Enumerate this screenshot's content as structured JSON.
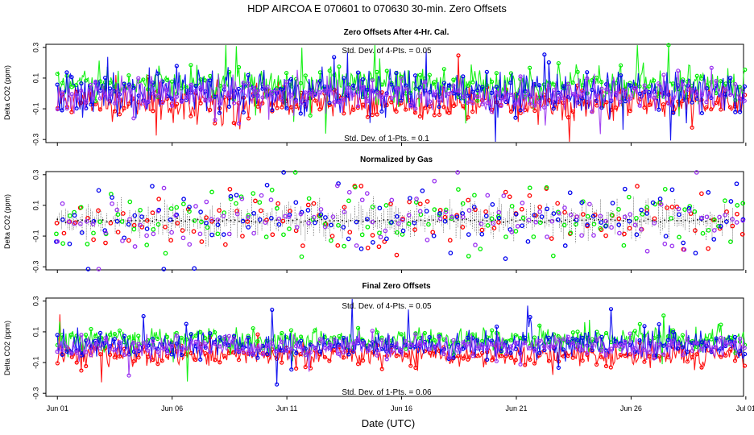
{
  "title": "HDP   AIRCOA E   070601 to 070630   30-min. Zero Offsets",
  "xlabel": "Date (UTC)",
  "colors": {
    "red": "#ff0000",
    "green": "#00ee00",
    "blue": "#0000ee",
    "purple": "#9a32f0",
    "black": "#000000"
  },
  "chart_data": [
    {
      "type": "scatter",
      "title": "Zero Offsets After 4-Hr. Cal.",
      "ylabel": "Delta CO2 (ppm)",
      "ylim": [
        -0.32,
        0.32
      ],
      "yticks": [
        0.3,
        0.1,
        -0.1,
        -0.3
      ],
      "ytick_labels": [
        "0.3",
        "0.1",
        "-0.1",
        "-0.3"
      ],
      "xlim": [
        0.5,
        30.9
      ],
      "xticks": [
        1,
        6,
        11,
        16,
        21,
        26,
        31
      ],
      "xtick_labels": [
        "Jun 01",
        "Jun 06",
        "Jun 11",
        "Jun 16",
        "Jun 21",
        "Jun 26",
        "Jul 01"
      ],
      "annotation_top": "Std. Dev. of 4-Pts. = 0.05",
      "annotation_bottom": "Std. Dev. of 1-Pts. = 0.1",
      "series": [
        {
          "name": "red",
          "color": "#ff0000",
          "mean": -0.06,
          "sd": 0.055,
          "lines": true
        },
        {
          "name": "green",
          "color": "#00ee00",
          "mean": 0.06,
          "sd": 0.06,
          "lines": true
        },
        {
          "name": "blue",
          "color": "#0000ee",
          "mean": 0.01,
          "sd": 0.07,
          "lines": true
        },
        {
          "name": "purple",
          "color": "#9a32f0",
          "mean": -0.01,
          "sd": 0.05,
          "lines": true
        }
      ]
    },
    {
      "type": "scatter",
      "title": "Normalized by Gas",
      "ylabel": "Delta CO2 (ppm)",
      "ylim": [
        -0.32,
        0.32
      ],
      "yticks": [
        0.3,
        0.1,
        -0.1,
        -0.3
      ],
      "ytick_labels": [
        "0.3",
        "0.1",
        "-0.1",
        "-0.3"
      ],
      "xlim": [
        0.5,
        30.9
      ],
      "xticks": [
        1,
        6,
        11,
        16,
        21,
        26,
        31
      ],
      "xtick_labels": [
        "Jun 01",
        "Jun 06",
        "Jun 11",
        "Jun 16",
        "Jun 21",
        "Jun 26",
        "Jul 01"
      ],
      "series": [
        {
          "name": "black",
          "color": "#000000",
          "mean": 0.0,
          "sd": 0.04,
          "lines": false
        },
        {
          "name": "red",
          "color": "#ff0000",
          "mean": -0.02,
          "sd": 0.1,
          "lines": false
        },
        {
          "name": "green",
          "color": "#00ee00",
          "mean": 0.02,
          "sd": 0.1,
          "lines": false
        },
        {
          "name": "blue",
          "color": "#0000ee",
          "mean": 0.0,
          "sd": 0.11,
          "lines": false
        },
        {
          "name": "purple",
          "color": "#9a32f0",
          "mean": 0.0,
          "sd": 0.1,
          "lines": false
        }
      ]
    },
    {
      "type": "scatter",
      "title": "Final Zero Offsets",
      "ylabel": "Delta CO2 (ppm)",
      "ylim": [
        -0.32,
        0.32
      ],
      "yticks": [
        0.3,
        0.1,
        -0.1,
        -0.3
      ],
      "ytick_labels": [
        "0.3",
        "0.1",
        "-0.1",
        "-0.3"
      ],
      "xlim": [
        0.5,
        30.9
      ],
      "xticks": [
        1,
        6,
        11,
        16,
        21,
        26,
        31
      ],
      "xtick_labels": [
        "Jun 01",
        "Jun 06",
        "Jun 11",
        "Jun 16",
        "Jun 21",
        "Jun 26",
        "Jul 01"
      ],
      "annotation_top": "Std. Dev. of 4-Pts. = 0.05",
      "annotation_bottom": "Std. Dev. of 1-Pts. = 0.06",
      "series": [
        {
          "name": "red",
          "color": "#ff0000",
          "mean": -0.05,
          "sd": 0.04,
          "lines": true
        },
        {
          "name": "green",
          "color": "#00ee00",
          "mean": 0.05,
          "sd": 0.04,
          "lines": true
        },
        {
          "name": "blue",
          "color": "#0000ee",
          "mean": 0.01,
          "sd": 0.045,
          "lines": true
        },
        {
          "name": "purple",
          "color": "#9a32f0",
          "mean": 0.0,
          "sd": 0.035,
          "lines": true
        }
      ]
    }
  ]
}
